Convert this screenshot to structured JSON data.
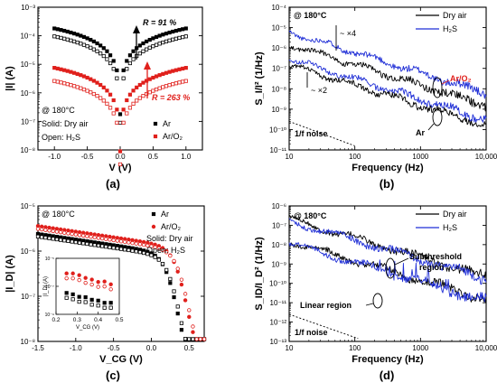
{
  "chart_data": [
    {
      "panel": "a",
      "panel_label": "(a)",
      "type": "scatter",
      "xlabel": "V (V)",
      "ylabel": "|I| (A)",
      "xlim": [
        -1.25,
        1.25
      ],
      "ylim_log10": [
        -8,
        -3
      ],
      "xticks": [
        -1.0,
        -0.5,
        0.0,
        0.5,
        1.0
      ],
      "xtick_labels": [
        "-1.0",
        "-0.5",
        "0.0",
        "0.5",
        "1.0"
      ],
      "yticks_log10": [
        -8,
        -7,
        -6,
        -5,
        -4,
        -3
      ],
      "ytick_labels": [
        "10⁻⁸",
        "10⁻⁷",
        "10⁻⁶",
        "10⁻⁵",
        "10⁻⁴",
        "10⁻³"
      ],
      "annotations": {
        "temp": "@ 180°C",
        "solid": "Solid: Dry air",
        "open": "Open: H₂S",
        "r_ar": "R = 91 %",
        "r_aro2": "R = 263 %"
      },
      "legend": [
        {
          "label": "Ar",
          "color": "#000000"
        },
        {
          "label": "Ar/O₂",
          "color": "#e0201c"
        }
      ],
      "series": [
        {
          "name": "Ar",
          "condition": "Dry air",
          "marker": "solid",
          "color": "#000000",
          "A": 0.00018,
          "Imin": 4e-07
        },
        {
          "name": "Ar",
          "condition": "H₂S",
          "marker": "open",
          "color": "#000000",
          "A": 9.5e-05,
          "Imin": 2e-07
        },
        {
          "name": "Ar/O₂",
          "condition": "Dry air",
          "marker": "solid",
          "color": "#e0201c",
          "A": 7.5e-06,
          "Imin": 2e-08
        },
        {
          "name": "Ar/O₂",
          "condition": "H₂S",
          "marker": "open",
          "color": "#e0201c",
          "A": 2.6e-06,
          "Imin": 7e-09
        }
      ]
    },
    {
      "panel": "b",
      "panel_label": "(b)",
      "type": "line",
      "xlabel": "Frequency (Hz)",
      "ylabel": "S_I/I² (1/Hz)",
      "xlim_log10": [
        1,
        4
      ],
      "ylim_log10": [
        -11,
        -4
      ],
      "xtick_labels": [
        "10",
        "100",
        "1000",
        "10,000"
      ],
      "ytick_labels": [
        "10⁻¹¹",
        "10⁻¹⁰",
        "10⁻⁹",
        "10⁻⁸",
        "10⁻⁷",
        "10⁻⁶",
        "10⁻⁵",
        "10⁻⁴"
      ],
      "annotations": {
        "temp": "@ 180°C",
        "x4": "~ ×4",
        "x2": "~ ×2",
        "aro2": "Ar/O₂",
        "ar": "Ar",
        "noise": "1/f noise"
      },
      "legend": [
        {
          "label": "Dry air",
          "color": "#000000"
        },
        {
          "label": "H₂S",
          "color": "#1f2ed6"
        }
      ],
      "series": [
        {
          "name": "Ar/O₂",
          "condition": "H₂S",
          "color": "#1f2ed6",
          "amp10": 6e-06
        },
        {
          "name": "Ar/O₂",
          "condition": "Dry air",
          "color": "#000000",
          "amp10": 1.5e-06
        },
        {
          "name": "Ar",
          "condition": "H₂S",
          "color": "#1f2ed6",
          "amp10": 3e-07
        },
        {
          "name": "Ar",
          "condition": "Dry air",
          "color": "#000000",
          "amp10": 1.5e-07
        }
      ]
    },
    {
      "panel": "c",
      "panel_label": "(c)",
      "type": "scatter",
      "xlabel": "V_CG (V)",
      "ylabel": "|I_D| (A)",
      "xlim": [
        -1.5,
        0.7
      ],
      "ylim_log10": [
        -8,
        -5
      ],
      "xtick_labels": [
        "-1.5",
        "-1.0",
        "-0.5",
        "0.0",
        "0.5"
      ],
      "ytick_labels": [
        "10⁻⁸",
        "10⁻⁷",
        "10⁻⁶",
        "10⁻⁵"
      ],
      "annotations": {
        "temp": "@ 180°C",
        "solid": "Solid: Dry air",
        "open": "Open: H₂S"
      },
      "legend": [
        {
          "label": "Ar",
          "color": "#000000"
        },
        {
          "label": "Ar/O₂",
          "color": "#e0201c"
        }
      ],
      "series": [
        {
          "name": "Ar",
          "condition": "Dry air",
          "marker": "solid",
          "color": "#000000",
          "Imax": 2.4e-06,
          "shift": 0.0
        },
        {
          "name": "Ar",
          "condition": "H₂S",
          "marker": "open",
          "color": "#000000",
          "Imax": 2.1e-06,
          "shift": 0.03
        },
        {
          "name": "Ar/O₂",
          "condition": "Dry air",
          "marker": "solid",
          "color": "#e0201c",
          "Imax": 3.6e-06,
          "shift": 0.12
        },
        {
          "name": "Ar/O₂",
          "condition": "H₂S",
          "marker": "open",
          "color": "#e0201c",
          "Imax": 3.1e-06,
          "shift": 0.15
        }
      ],
      "inset": {
        "xlabel": "V_CG (V)",
        "ylabel": "|I_D| (A)",
        "xlim": [
          0.2,
          0.5
        ],
        "ylim_log10": [
          -9,
          -5
        ],
        "xtick_labels": [
          "0.2",
          "0.3",
          "0.4",
          "0.5"
        ],
        "ytick_labels": [
          "10⁻⁹",
          "10⁻⁷",
          "10⁻⁵"
        ]
      }
    },
    {
      "panel": "d",
      "panel_label": "(d)",
      "type": "line",
      "xlabel": "Frequency (Hz)",
      "ylabel": "S_ID/I_D² (1/Hz)",
      "xlim_log10": [
        1,
        4
      ],
      "ylim_log10": [
        -13,
        -6
      ],
      "xtick_labels": [
        "10",
        "100",
        "1000",
        "10,000"
      ],
      "ytick_labels": [
        "10⁻¹³",
        "10⁻¹²",
        "10⁻¹¹",
        "10⁻¹⁰",
        "10⁻⁹",
        "10⁻⁸",
        "10⁻⁷",
        "10⁻⁶"
      ],
      "annotations": {
        "temp": "@ 180°C",
        "sub": "Subthreshold",
        "sub2": "region",
        "lin": "Linear region",
        "noise": "1/f noise"
      },
      "legend": [
        {
          "label": "Dry air",
          "color": "#000000"
        },
        {
          "label": "H₂S",
          "color": "#1f2ed6"
        }
      ],
      "series": [
        {
          "name": "Subthreshold",
          "condition": "Dry air",
          "color": "#000000",
          "amp10": 2.2e-07
        },
        {
          "name": "Subthreshold",
          "condition": "H₂S",
          "color": "#1f2ed6",
          "amp10": 1.7e-07
        },
        {
          "name": "Linear",
          "condition": "Dry air",
          "color": "#000000",
          "amp10": 1.5e-08
        },
        {
          "name": "Linear",
          "condition": "H₂S",
          "color": "#1f2ed6",
          "amp10": 1.2e-08
        }
      ]
    }
  ]
}
